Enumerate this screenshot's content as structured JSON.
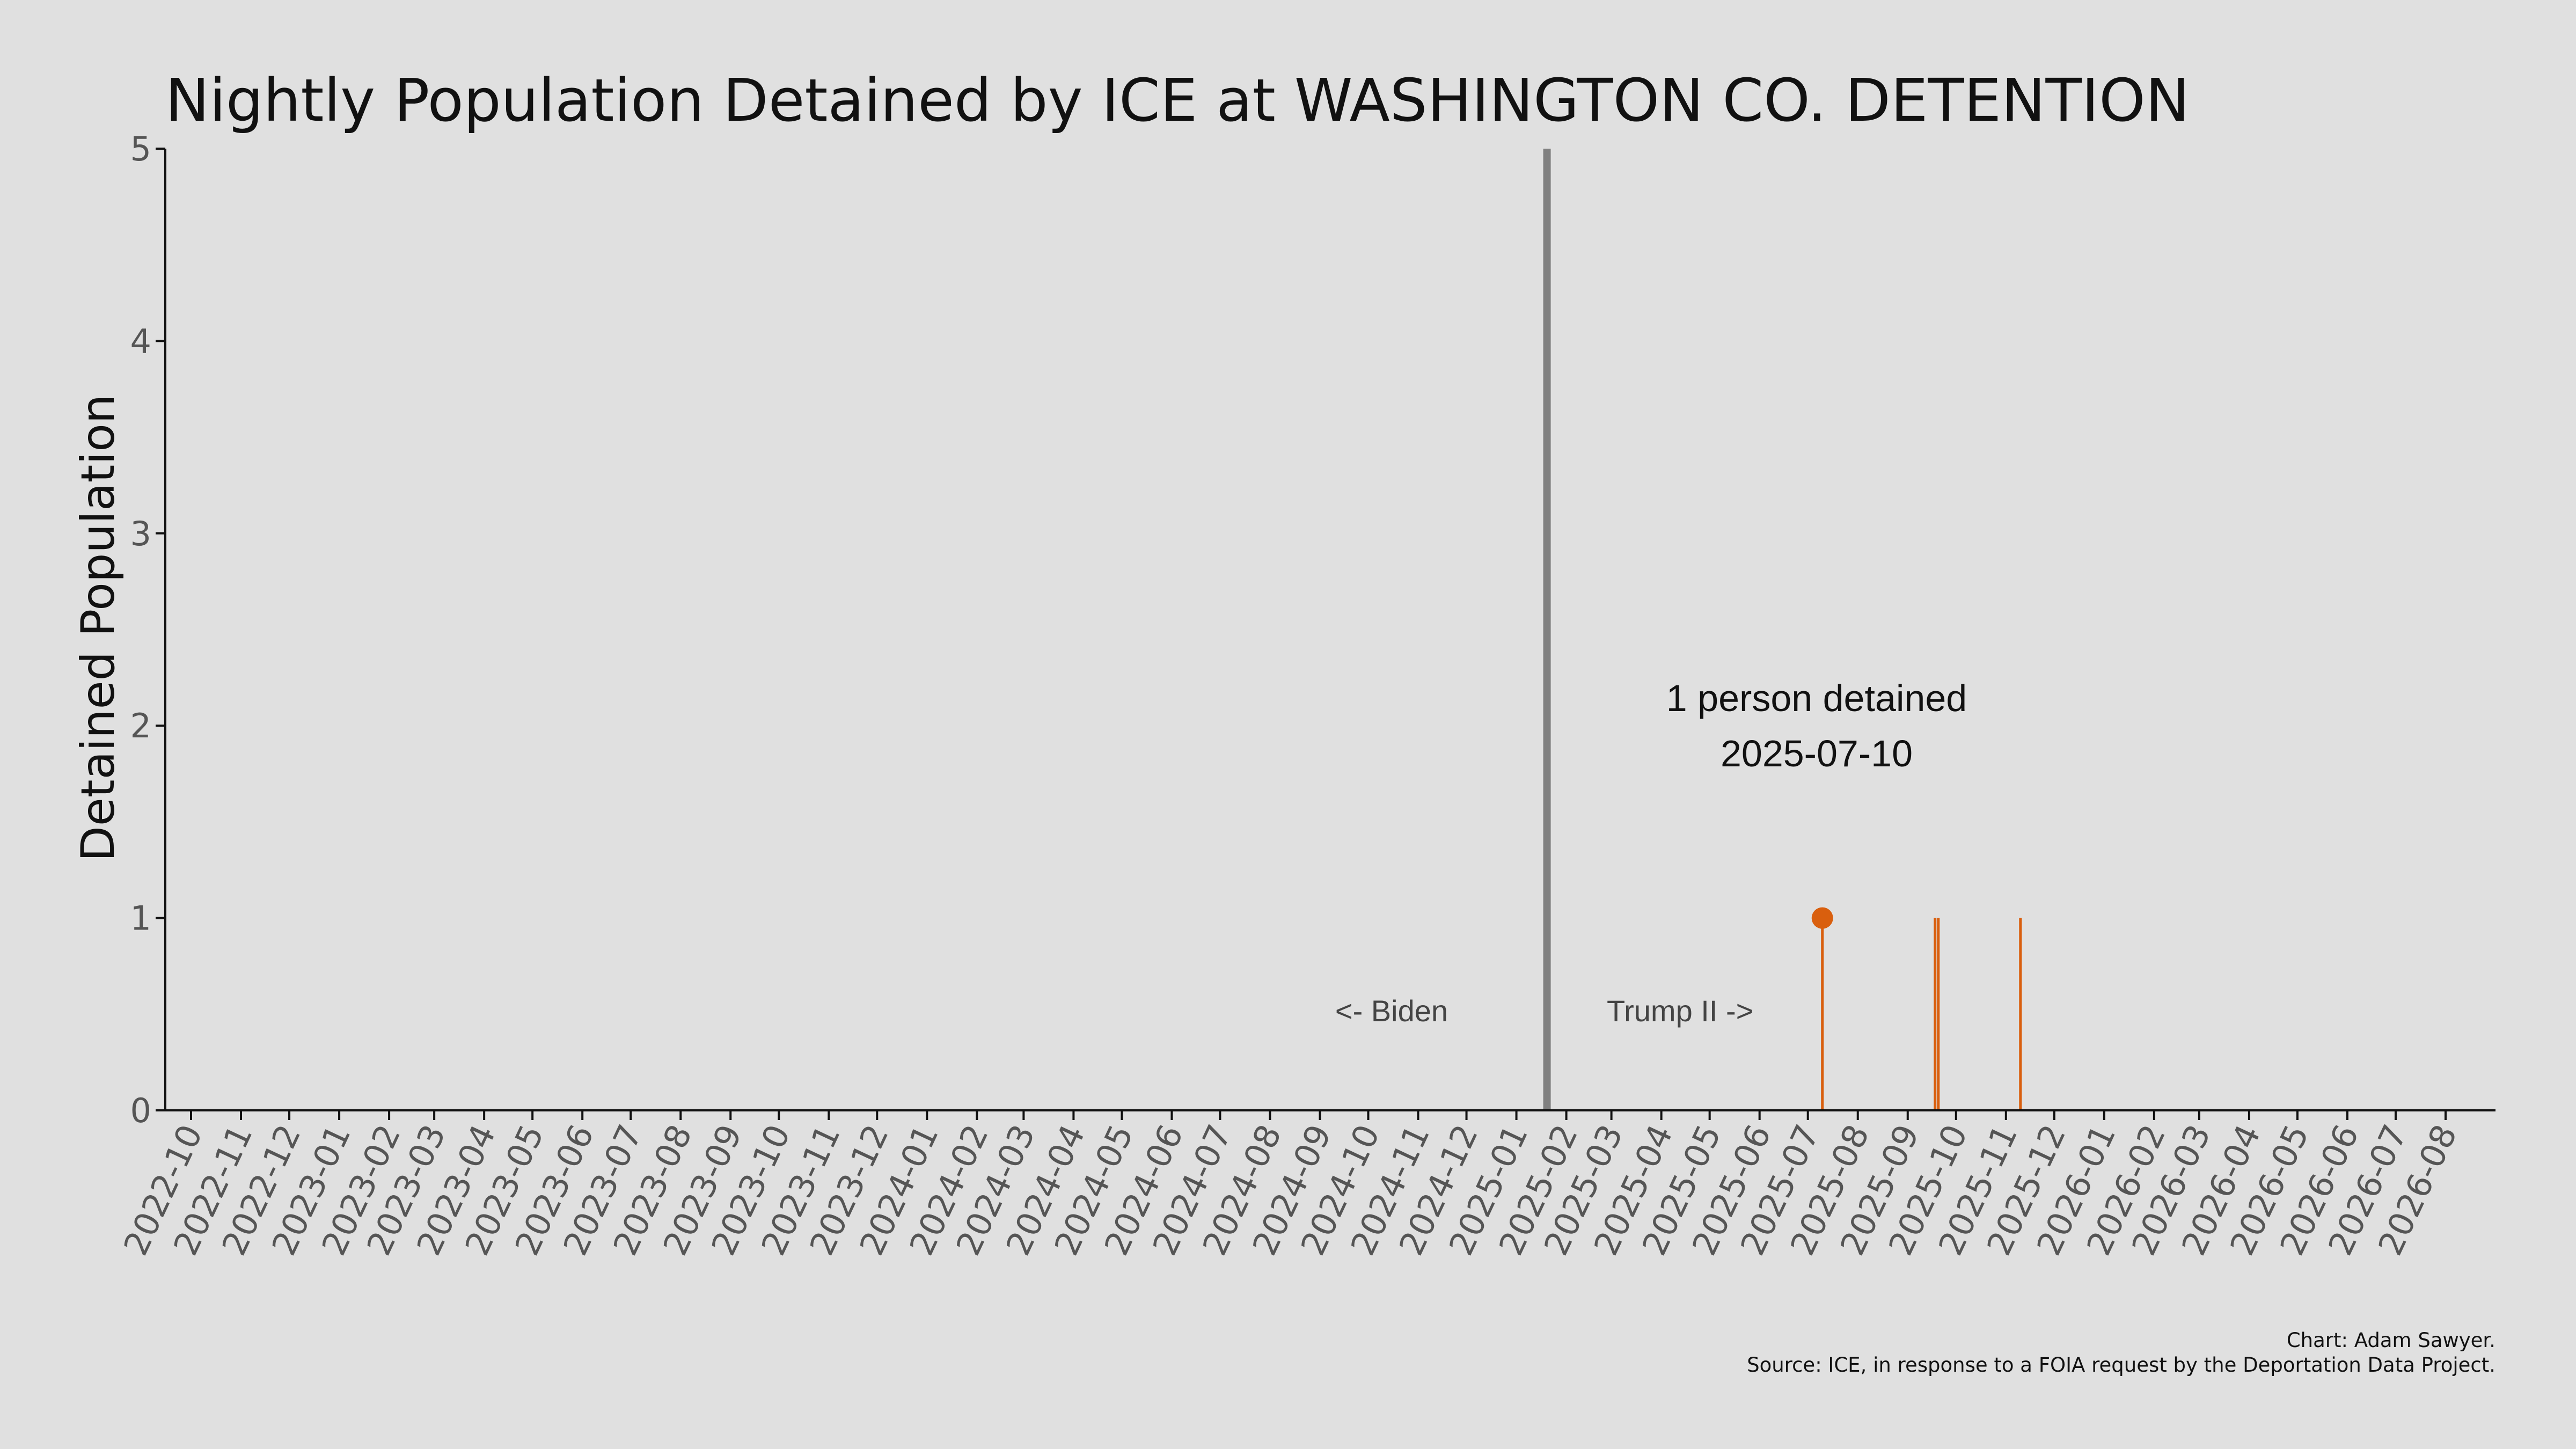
{
  "chart_data": {
    "type": "line",
    "title": "Nightly Population Detained by ICE at WASHINGTON CO. DETENTION",
    "xlabel": "",
    "ylabel": "Detained Population",
    "ylim": [
      0,
      5
    ],
    "yticks": [
      0,
      1,
      2,
      3,
      4,
      5
    ],
    "xlim": [
      "2022-09-15",
      "2026-09-01"
    ],
    "xticks": [
      "2022-10",
      "2022-11",
      "2022-12",
      "2023-01",
      "2023-02",
      "2023-03",
      "2023-04",
      "2023-05",
      "2023-06",
      "2023-07",
      "2023-08",
      "2023-09",
      "2023-10",
      "2023-11",
      "2023-12",
      "2024-01",
      "2024-02",
      "2024-03",
      "2024-04",
      "2024-05",
      "2024-06",
      "2024-07",
      "2024-08",
      "2024-09",
      "2024-10",
      "2024-11",
      "2024-12",
      "2025-01",
      "2025-02",
      "2025-03",
      "2025-04",
      "2025-05",
      "2025-06",
      "2025-07",
      "2025-08",
      "2025-09",
      "2025-10",
      "2025-11",
      "2025-12",
      "2026-01",
      "2026-02",
      "2026-03",
      "2026-04",
      "2026-05",
      "2026-06",
      "2026-07",
      "2026-08"
    ],
    "grid": false,
    "series": [
      {
        "color": "#d95f0e",
        "points": [
          {
            "date": "2025-07-10",
            "value": 1
          },
          {
            "date": "2025-09-18",
            "value": 1
          },
          {
            "date": "2025-09-20",
            "value": 1
          },
          {
            "date": "2025-11-10",
            "value": 1
          }
        ]
      }
    ],
    "highlight": {
      "date": "2025-07-10",
      "value": 1,
      "color": "#d95f0e"
    },
    "annotation": {
      "line1": "1 person detained",
      "line2": "2025-07-10"
    },
    "reference_line": {
      "date": "2025-01-20",
      "color": "#808080"
    },
    "era_labels": {
      "left": "<- Biden",
      "right": "Trump II ->"
    }
  },
  "credits": {
    "line1": "Chart: Adam Sawyer.",
    "line2": "Source: ICE, in response to a FOIA request by the Deportation Data Project."
  }
}
